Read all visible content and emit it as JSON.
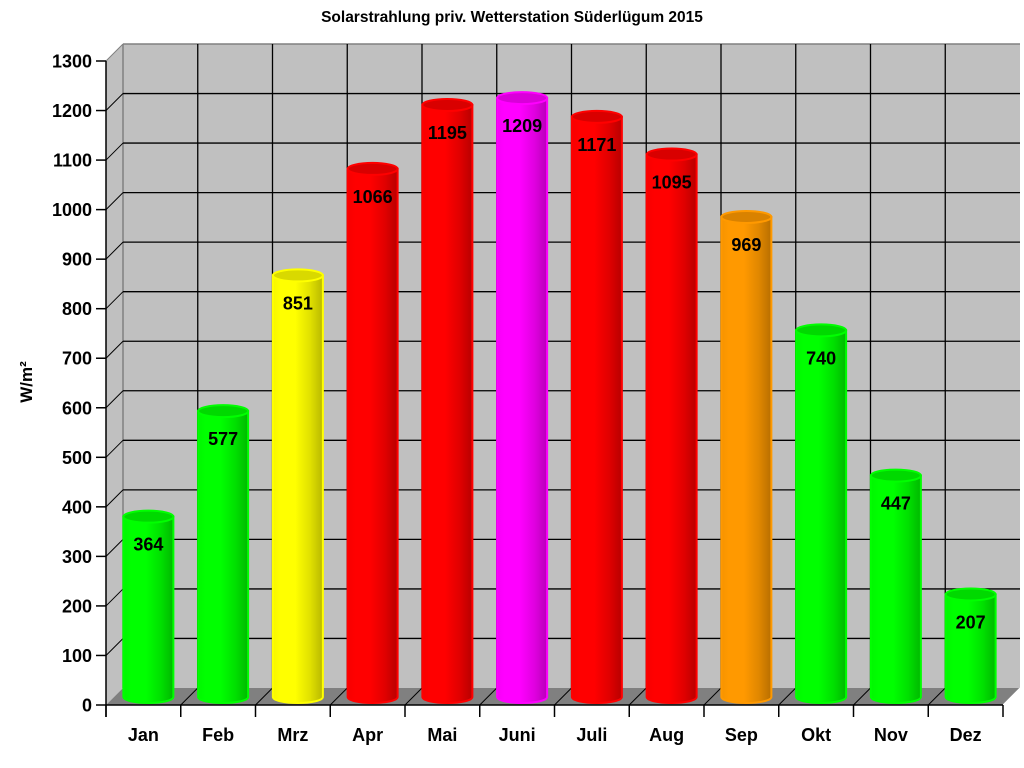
{
  "chart_data": {
    "type": "bar",
    "style": "3d-cylinder",
    "title": "Solarstrahlung priv. Wetterstation Süderlügum 2015",
    "xlabel": "",
    "ylabel": "W/m²",
    "ylim": [
      0,
      1300
    ],
    "ytick_step": 100,
    "yticks": [
      0,
      100,
      200,
      300,
      400,
      500,
      600,
      700,
      800,
      900,
      1000,
      1100,
      1200,
      1300
    ],
    "grid": true,
    "legend": null,
    "categories": [
      "Jan",
      "Feb",
      "Mrz",
      "Apr",
      "Mai",
      "Juni",
      "Juli",
      "Aug",
      "Sep",
      "Okt",
      "Nov",
      "Dez"
    ],
    "values": [
      364,
      577,
      851,
      1066,
      1195,
      1209,
      1171,
      1095,
      969,
      740,
      447,
      207
    ],
    "bar_colors": [
      "#00ff00",
      "#00ff00",
      "#ffff00",
      "#ff0000",
      "#ff0000",
      "#ff00ff",
      "#ff0000",
      "#ff0000",
      "#ff9900",
      "#00ff00",
      "#00ff00",
      "#00ff00"
    ],
    "data_labels": [
      "364",
      "577",
      "851",
      "1066",
      "1195",
      "1209",
      "1171",
      "1095",
      "969",
      "740",
      "447",
      "207"
    ]
  },
  "colors": {
    "wall": "#c0c0c0",
    "floor": "#808080",
    "grid": "#000000"
  }
}
